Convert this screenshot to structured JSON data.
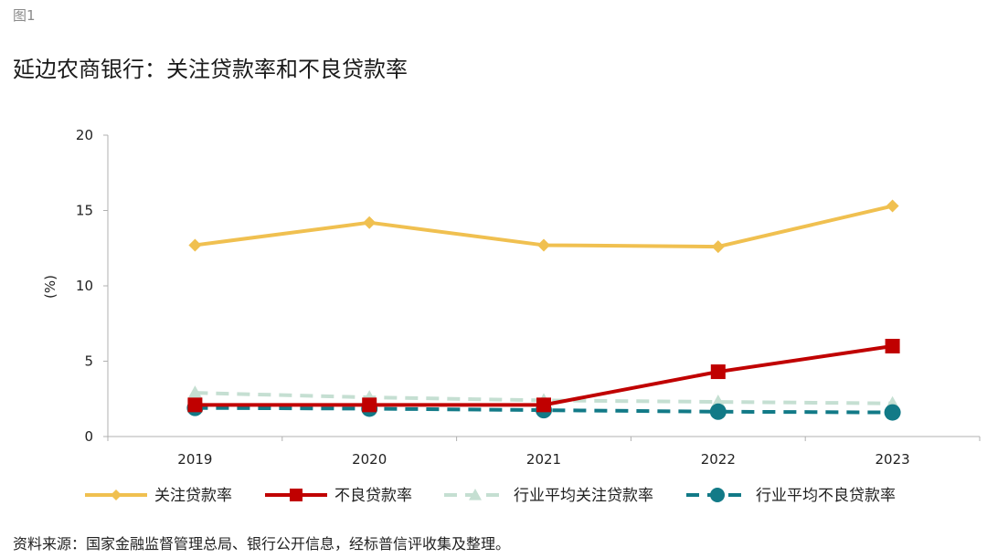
{
  "figure_label": "图1",
  "chart_data": {
    "type": "line",
    "title": "延边农商银行：关注贷款率和不良贷款率",
    "ylabel": "(%)",
    "xlabel": "",
    "categories": [
      "2019",
      "2020",
      "2021",
      "2022",
      "2023"
    ],
    "ylim": [
      0,
      20
    ],
    "yticks": [
      0,
      5,
      10,
      15,
      20
    ],
    "grid": false,
    "legend_position": "bottom",
    "series": [
      {
        "name": "关注贷款率",
        "values": [
          12.7,
          14.2,
          12.7,
          12.6,
          15.3
        ],
        "color": "#f0c050",
        "marker": "diamond",
        "dash": "solid"
      },
      {
        "name": "不良贷款率",
        "values": [
          2.1,
          2.1,
          2.1,
          4.3,
          6.0
        ],
        "color": "#c00000",
        "marker": "square",
        "dash": "solid"
      },
      {
        "name": "行业平均关注贷款率",
        "values": [
          2.9,
          2.6,
          2.4,
          2.3,
          2.2
        ],
        "color": "#c5dfd2",
        "marker": "triangle",
        "dash": "dashed"
      },
      {
        "name": "行业平均不良贷款率",
        "values": [
          1.9,
          1.85,
          1.75,
          1.65,
          1.6
        ],
        "color": "#127a87",
        "marker": "circle",
        "dash": "dashed"
      }
    ]
  },
  "source": "资料来源：国家金融监督管理总局、银行公开信息，经标普信评收集及整理。"
}
